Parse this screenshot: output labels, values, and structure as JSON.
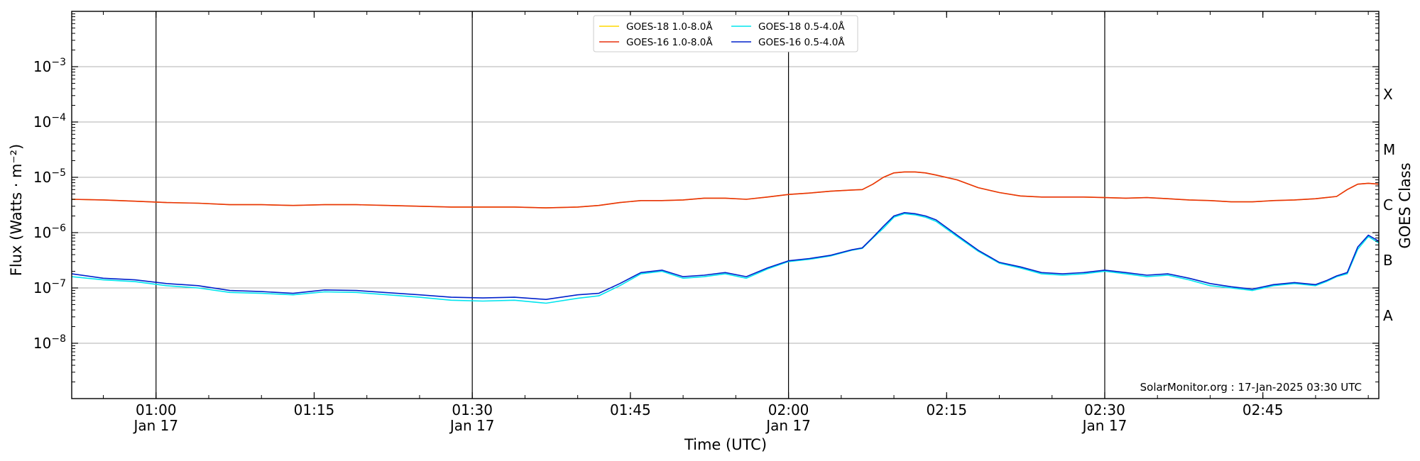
{
  "chart_data": {
    "type": "line",
    "title": "",
    "xlabel": "Time (UTC)",
    "ylabel": "Flux (Watts · m⁻²)",
    "ylabel_right": "GOES Class",
    "yscale": "log",
    "xlim": [
      "00:52",
      "02:56"
    ],
    "ylim": [
      1e-09,
      0.01
    ],
    "grid": "horizontal at decades",
    "legend_position": "top-center",
    "y_ticks": [
      {
        "value": 0.001,
        "label": "10",
        "exp": "−3"
      },
      {
        "value": 0.0001,
        "label": "10",
        "exp": "−4"
      },
      {
        "value": 1e-05,
        "label": "10",
        "exp": "−5"
      },
      {
        "value": 1e-06,
        "label": "10",
        "exp": "−6"
      },
      {
        "value": 1e-07,
        "label": "10",
        "exp": "−7"
      },
      {
        "value": 1e-08,
        "label": "10",
        "exp": "−8"
      }
    ],
    "x_ticks": [
      {
        "time": "01:00",
        "line1": "01:00",
        "line2": "Jan 17",
        "day_line": true
      },
      {
        "time": "01:15",
        "line1": "01:15",
        "line2": "",
        "day_line": false
      },
      {
        "time": "01:30",
        "line1": "01:30",
        "line2": "Jan 17",
        "day_line": true
      },
      {
        "time": "01:45",
        "line1": "01:45",
        "line2": "",
        "day_line": false
      },
      {
        "time": "02:00",
        "line1": "02:00",
        "line2": "Jan 17",
        "day_line": true
      },
      {
        "time": "02:15",
        "line1": "02:15",
        "line2": "",
        "day_line": false
      },
      {
        "time": "02:30",
        "line1": "02:30",
        "line2": "Jan 17",
        "day_line": true
      },
      {
        "time": "02:45",
        "line1": "02:45",
        "line2": "",
        "day_line": false
      }
    ],
    "goes_classes": [
      {
        "label": "X",
        "value": 0.000316
      },
      {
        "label": "M",
        "value": 3.16e-05
      },
      {
        "label": "C",
        "value": 3.16e-06
      },
      {
        "label": "B",
        "value": 3.16e-07
      },
      {
        "label": "A",
        "value": 3.16e-08
      }
    ],
    "x": [
      "00:52",
      "00:55",
      "00:58",
      "01:01",
      "01:04",
      "01:07",
      "01:10",
      "01:13",
      "01:16",
      "01:19",
      "01:22",
      "01:25",
      "01:28",
      "01:31",
      "01:34",
      "01:37",
      "01:40",
      "01:42",
      "01:44",
      "01:46",
      "01:48",
      "01:50",
      "01:52",
      "01:54",
      "01:56",
      "01:58",
      "02:00",
      "02:02",
      "02:04",
      "02:06",
      "02:07",
      "02:08",
      "02:09",
      "02:10",
      "02:11",
      "02:12",
      "02:13",
      "02:14",
      "02:16",
      "02:18",
      "02:20",
      "02:22",
      "02:24",
      "02:26",
      "02:28",
      "02:30",
      "02:32",
      "02:34",
      "02:36",
      "02:38",
      "02:40",
      "02:42",
      "02:44",
      "02:46",
      "02:48",
      "02:50",
      "02:51",
      "02:52",
      "02:53",
      "02:54",
      "02:55",
      "02:56"
    ],
    "series": [
      {
        "name": "GOES-18 1.0-8.0Å",
        "color": "#ffd700",
        "values": [
          4e-06,
          3.9e-06,
          3.7e-06,
          3.5e-06,
          3.4e-06,
          3.2e-06,
          3.2e-06,
          3.1e-06,
          3.2e-06,
          3.2e-06,
          3.1e-06,
          3e-06,
          2.9e-06,
          2.9e-06,
          2.9e-06,
          2.8e-06,
          2.9e-06,
          3.1e-06,
          3.5e-06,
          3.8e-06,
          3.8e-06,
          3.9e-06,
          4.2e-06,
          4.2e-06,
          4e-06,
          4.4e-06,
          4.9e-06,
          5.2e-06,
          5.6e-06,
          5.9e-06,
          6e-06,
          7.5e-06,
          1e-05,
          1.2e-05,
          1.25e-05,
          1.25e-05,
          1.2e-05,
          1.1e-05,
          9e-06,
          6.5e-06,
          5.3e-06,
          4.6e-06,
          4.4e-06,
          4.4e-06,
          4.4e-06,
          4.3e-06,
          4.2e-06,
          4.3e-06,
          4.1e-06,
          3.9e-06,
          3.8e-06,
          3.6e-06,
          3.6e-06,
          3.8e-06,
          3.9e-06,
          4.1e-06,
          4.3e-06,
          4.5e-06,
          6e-06,
          7.5e-06,
          7.8e-06,
          7.5e-06
        ]
      },
      {
        "name": "GOES-16 1.0-8.0Å",
        "color": "#e8320e",
        "values": [
          4e-06,
          3.9e-06,
          3.7e-06,
          3.5e-06,
          3.4e-06,
          3.2e-06,
          3.2e-06,
          3.1e-06,
          3.2e-06,
          3.2e-06,
          3.1e-06,
          3e-06,
          2.9e-06,
          2.9e-06,
          2.9e-06,
          2.8e-06,
          2.9e-06,
          3.1e-06,
          3.5e-06,
          3.8e-06,
          3.8e-06,
          3.9e-06,
          4.2e-06,
          4.2e-06,
          4e-06,
          4.4e-06,
          4.9e-06,
          5.2e-06,
          5.6e-06,
          5.9e-06,
          6e-06,
          7.5e-06,
          1e-05,
          1.2e-05,
          1.25e-05,
          1.25e-05,
          1.2e-05,
          1.1e-05,
          9e-06,
          6.5e-06,
          5.3e-06,
          4.6e-06,
          4.4e-06,
          4.4e-06,
          4.4e-06,
          4.3e-06,
          4.2e-06,
          4.3e-06,
          4.1e-06,
          3.9e-06,
          3.8e-06,
          3.6e-06,
          3.6e-06,
          3.8e-06,
          3.9e-06,
          4.1e-06,
          4.3e-06,
          4.5e-06,
          6e-06,
          7.5e-06,
          7.8e-06,
          7.5e-06
        ]
      },
      {
        "name": "GOES-18 0.5-4.0Å",
        "color": "#00e5ee",
        "values": [
          1.6e-07,
          1.4e-07,
          1.3e-07,
          1.1e-07,
          1e-07,
          8.3e-08,
          8e-08,
          7.5e-08,
          8.5e-08,
          8.3e-08,
          7.5e-08,
          6.8e-08,
          6e-08,
          5.8e-08,
          6e-08,
          5.3e-08,
          6.5e-08,
          7.2e-08,
          1.1e-07,
          1.8e-07,
          2e-07,
          1.5e-07,
          1.6e-07,
          1.8e-07,
          1.5e-07,
          2.2e-07,
          3e-07,
          3.3e-07,
          3.8e-07,
          4.8e-07,
          5.2e-07,
          8e-07,
          1.2e-06,
          1.9e-06,
          2.2e-06,
          2.1e-06,
          1.9e-06,
          1.6e-06,
          8.5e-07,
          4.6e-07,
          2.8e-07,
          2.3e-07,
          1.8e-07,
          1.7e-07,
          1.8e-07,
          2e-07,
          1.8e-07,
          1.6e-07,
          1.7e-07,
          1.4e-07,
          1.1e-07,
          1e-07,
          9e-08,
          1.1e-07,
          1.2e-07,
          1.1e-07,
          1.3e-07,
          1.6e-07,
          1.8e-07,
          5e-07,
          8.5e-07,
          6.5e-07
        ]
      },
      {
        "name": "GOES-16 0.5-4.0Å",
        "color": "#0022cc",
        "values": [
          1.8e-07,
          1.5e-07,
          1.4e-07,
          1.2e-07,
          1.1e-07,
          9e-08,
          8.6e-08,
          8e-08,
          9.2e-08,
          9e-08,
          8.2e-08,
          7.5e-08,
          6.8e-08,
          6.6e-08,
          6.8e-08,
          6.2e-08,
          7.5e-08,
          8e-08,
          1.2e-07,
          1.9e-07,
          2.1e-07,
          1.6e-07,
          1.7e-07,
          1.9e-07,
          1.6e-07,
          2.3e-07,
          3.1e-07,
          3.4e-07,
          3.9e-07,
          4.9e-07,
          5.3e-07,
          8.2e-07,
          1.3e-06,
          2e-06,
          2.3e-06,
          2.2e-06,
          2e-06,
          1.7e-06,
          9e-07,
          4.8e-07,
          2.9e-07,
          2.4e-07,
          1.9e-07,
          1.8e-07,
          1.9e-07,
          2.1e-07,
          1.9e-07,
          1.7e-07,
          1.8e-07,
          1.5e-07,
          1.2e-07,
          1.05e-07,
          9.5e-08,
          1.15e-07,
          1.25e-07,
          1.15e-07,
          1.35e-07,
          1.65e-07,
          1.9e-07,
          5.5e-07,
          9e-07,
          7e-07
        ]
      }
    ],
    "annotation": "SolarMonitor.org : 17-Jan-2025 03:30 UTC"
  }
}
